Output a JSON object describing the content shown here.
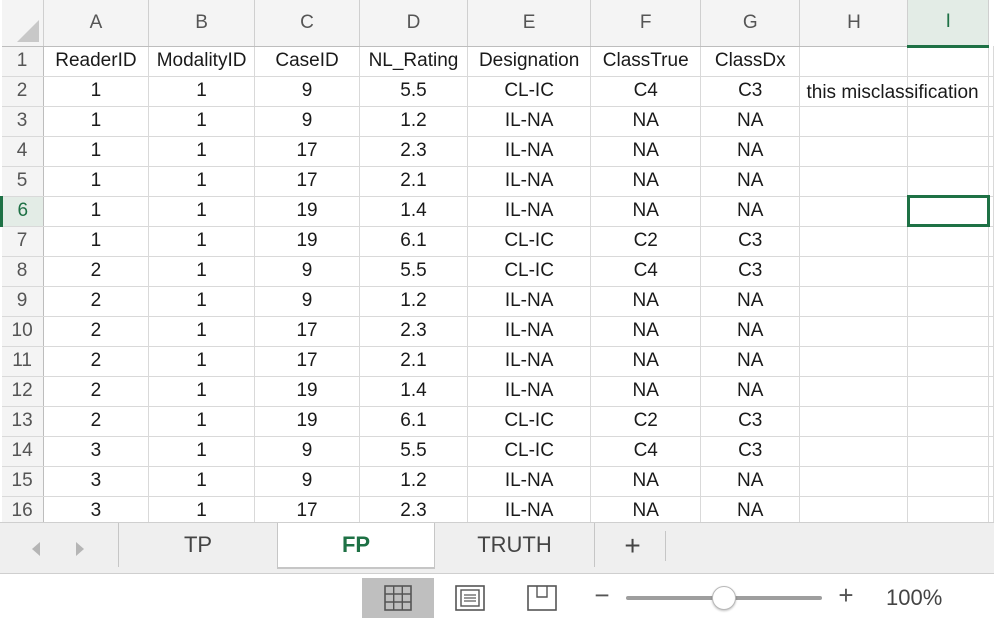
{
  "spreadsheet": {
    "columns": [
      "A",
      "B",
      "C",
      "D",
      "E",
      "F",
      "G",
      "H",
      "I"
    ],
    "active_column": "I",
    "active_row": "6",
    "rows": [
      {
        "num": "1",
        "cells": [
          "ReaderID",
          "ModalityID",
          "CaseID",
          "NL_Rating",
          "Designation",
          "ClassTrue",
          "ClassDx",
          "",
          ""
        ]
      },
      {
        "num": "2",
        "cells": [
          "1",
          "1",
          "9",
          "5.5",
          "CL-IC",
          "C4",
          "C3",
          "this misclassification",
          ""
        ]
      },
      {
        "num": "3",
        "cells": [
          "1",
          "1",
          "9",
          "1.2",
          "IL-NA",
          "NA",
          "NA",
          "",
          ""
        ]
      },
      {
        "num": "4",
        "cells": [
          "1",
          "1",
          "17",
          "2.3",
          "IL-NA",
          "NA",
          "NA",
          "",
          ""
        ]
      },
      {
        "num": "5",
        "cells": [
          "1",
          "1",
          "17",
          "2.1",
          "IL-NA",
          "NA",
          "NA",
          "",
          ""
        ]
      },
      {
        "num": "6",
        "cells": [
          "1",
          "1",
          "19",
          "1.4",
          "IL-NA",
          "NA",
          "NA",
          "",
          ""
        ]
      },
      {
        "num": "7",
        "cells": [
          "1",
          "1",
          "19",
          "6.1",
          "CL-IC",
          "C2",
          "C3",
          "",
          ""
        ]
      },
      {
        "num": "8",
        "cells": [
          "2",
          "1",
          "9",
          "5.5",
          "CL-IC",
          "C4",
          "C3",
          "",
          ""
        ]
      },
      {
        "num": "9",
        "cells": [
          "2",
          "1",
          "9",
          "1.2",
          "IL-NA",
          "NA",
          "NA",
          "",
          ""
        ]
      },
      {
        "num": "10",
        "cells": [
          "2",
          "1",
          "17",
          "2.3",
          "IL-NA",
          "NA",
          "NA",
          "",
          ""
        ]
      },
      {
        "num": "11",
        "cells": [
          "2",
          "1",
          "17",
          "2.1",
          "IL-NA",
          "NA",
          "NA",
          "",
          ""
        ]
      },
      {
        "num": "12",
        "cells": [
          "2",
          "1",
          "19",
          "1.4",
          "IL-NA",
          "NA",
          "NA",
          "",
          ""
        ]
      },
      {
        "num": "13",
        "cells": [
          "2",
          "1",
          "19",
          "6.1",
          "CL-IC",
          "C2",
          "C3",
          "",
          ""
        ]
      },
      {
        "num": "14",
        "cells": [
          "3",
          "1",
          "9",
          "5.5",
          "CL-IC",
          "C4",
          "C3",
          "",
          ""
        ]
      },
      {
        "num": "15",
        "cells": [
          "3",
          "1",
          "9",
          "1.2",
          "IL-NA",
          "NA",
          "NA",
          "",
          ""
        ]
      },
      {
        "num": "16",
        "cells": [
          "3",
          "1",
          "17",
          "2.3",
          "IL-NA",
          "NA",
          "NA",
          "",
          ""
        ]
      }
    ]
  },
  "sheet_tabs": [
    {
      "label": "TP",
      "active": false
    },
    {
      "label": "FP",
      "active": true
    },
    {
      "label": "TRUTH",
      "active": false
    }
  ],
  "add_sheet_label": "+",
  "status_bar": {
    "zoom_minus": "−",
    "zoom_plus": "+",
    "zoom_level": "100%",
    "zoom_slider_position": 0.5
  },
  "icons": {
    "prev_sheet": "chevron-left-icon",
    "next_sheet": "chevron-right-icon",
    "normal_view": "grid-icon",
    "page_layout_view": "page-layout-icon",
    "page_break_view": "page-break-icon"
  },
  "colors": {
    "accent": "#1e7145",
    "header_bg": "#f4f4f4",
    "gridline": "#d9d9d9"
  }
}
